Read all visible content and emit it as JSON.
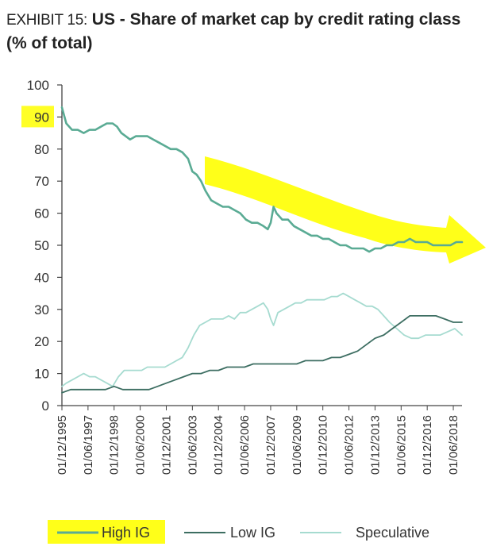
{
  "header": {
    "exhibit_label": "EXHIBIT 15:",
    "title": "US - Share of market cap by credit rating class (% of total)"
  },
  "chart_data": {
    "type": "line",
    "title": "US - Share of market cap by credit rating class (% of total)",
    "xlabel": "",
    "ylabel": "",
    "ylim": [
      0,
      100
    ],
    "yticks": [
      0,
      10,
      20,
      30,
      40,
      50,
      60,
      70,
      80,
      90,
      100
    ],
    "highlighted_ytick": 90,
    "x_start": "1995-12",
    "x_end": "2018-12",
    "xtick_labels": [
      "01/12/1995",
      "01/06/1997",
      "01/12/1998",
      "01/06/2000",
      "01/12/2001",
      "01/06/2003",
      "01/12/2004",
      "01/06/2006",
      "01/12/2007",
      "01/06/2009",
      "01/12/2010",
      "01/06/2012",
      "01/12/2013",
      "01/06/2015",
      "01/12/2016",
      "01/06/2018"
    ],
    "grid": false,
    "legend_position": "bottom",
    "series": [
      {
        "name": "High IG",
        "color": "#5aab94",
        "highlighted": true,
        "points": [
          [
            "1995-12",
            93
          ],
          [
            "1996-03",
            88
          ],
          [
            "1996-07",
            86
          ],
          [
            "1996-11",
            86
          ],
          [
            "1997-03",
            85
          ],
          [
            "1997-07",
            86
          ],
          [
            "1997-11",
            86
          ],
          [
            "1998-03",
            87
          ],
          [
            "1998-07",
            88
          ],
          [
            "1998-11",
            88
          ],
          [
            "1999-02",
            87
          ],
          [
            "1999-05",
            85
          ],
          [
            "1999-08",
            84
          ],
          [
            "1999-11",
            83
          ],
          [
            "2000-03",
            84
          ],
          [
            "2000-07",
            84
          ],
          [
            "2000-11",
            84
          ],
          [
            "2001-03",
            83
          ],
          [
            "2001-07",
            82
          ],
          [
            "2001-11",
            81
          ],
          [
            "2002-03",
            80
          ],
          [
            "2002-07",
            80
          ],
          [
            "2002-11",
            79
          ],
          [
            "2003-03",
            77
          ],
          [
            "2003-06",
            73
          ],
          [
            "2003-09",
            72
          ],
          [
            "2003-12",
            70
          ],
          [
            "2004-03",
            67
          ],
          [
            "2004-07",
            64
          ],
          [
            "2004-11",
            63
          ],
          [
            "2005-03",
            62
          ],
          [
            "2005-07",
            62
          ],
          [
            "2005-11",
            61
          ],
          [
            "2006-03",
            60
          ],
          [
            "2006-07",
            58
          ],
          [
            "2006-11",
            57
          ],
          [
            "2007-03",
            57
          ],
          [
            "2007-07",
            56
          ],
          [
            "2007-10",
            55
          ],
          [
            "2007-12",
            57
          ],
          [
            "2008-02",
            62
          ],
          [
            "2008-04",
            60
          ],
          [
            "2008-08",
            58
          ],
          [
            "2008-12",
            58
          ],
          [
            "2009-04",
            56
          ],
          [
            "2009-08",
            55
          ],
          [
            "2009-12",
            54
          ],
          [
            "2010-04",
            53
          ],
          [
            "2010-08",
            53
          ],
          [
            "2010-12",
            52
          ],
          [
            "2011-04",
            52
          ],
          [
            "2011-08",
            51
          ],
          [
            "2011-12",
            50
          ],
          [
            "2012-04",
            50
          ],
          [
            "2012-08",
            49
          ],
          [
            "2012-12",
            49
          ],
          [
            "2013-04",
            49
          ],
          [
            "2013-08",
            48
          ],
          [
            "2013-12",
            49
          ],
          [
            "2014-04",
            49
          ],
          [
            "2014-08",
            50
          ],
          [
            "2014-12",
            50
          ],
          [
            "2015-04",
            51
          ],
          [
            "2015-08",
            51
          ],
          [
            "2015-12",
            52
          ],
          [
            "2016-04",
            51
          ],
          [
            "2016-08",
            51
          ],
          [
            "2016-12",
            51
          ],
          [
            "2017-04",
            50
          ],
          [
            "2017-08",
            50
          ],
          [
            "2017-12",
            50
          ],
          [
            "2018-04",
            50
          ],
          [
            "2018-08",
            51
          ],
          [
            "2018-12",
            51
          ]
        ]
      },
      {
        "name": "Low IG",
        "color": "#3d6e62",
        "highlighted": false,
        "points": [
          [
            "1995-12",
            4
          ],
          [
            "1996-06",
            5
          ],
          [
            "1996-12",
            5
          ],
          [
            "1997-06",
            5
          ],
          [
            "1997-12",
            5
          ],
          [
            "1998-06",
            5
          ],
          [
            "1998-12",
            6
          ],
          [
            "1999-06",
            5
          ],
          [
            "1999-12",
            5
          ],
          [
            "2000-06",
            5
          ],
          [
            "2000-12",
            5
          ],
          [
            "2001-06",
            6
          ],
          [
            "2001-12",
            7
          ],
          [
            "2002-06",
            8
          ],
          [
            "2002-12",
            9
          ],
          [
            "2003-06",
            10
          ],
          [
            "2003-12",
            10
          ],
          [
            "2004-06",
            11
          ],
          [
            "2004-12",
            11
          ],
          [
            "2005-06",
            12
          ],
          [
            "2005-12",
            12
          ],
          [
            "2006-06",
            12
          ],
          [
            "2006-12",
            13
          ],
          [
            "2007-06",
            13
          ],
          [
            "2007-12",
            13
          ],
          [
            "2008-06",
            13
          ],
          [
            "2008-12",
            13
          ],
          [
            "2009-06",
            13
          ],
          [
            "2009-12",
            14
          ],
          [
            "2010-06",
            14
          ],
          [
            "2010-12",
            14
          ],
          [
            "2011-06",
            15
          ],
          [
            "2011-12",
            15
          ],
          [
            "2012-06",
            16
          ],
          [
            "2012-12",
            17
          ],
          [
            "2013-06",
            19
          ],
          [
            "2013-12",
            21
          ],
          [
            "2014-06",
            22
          ],
          [
            "2014-12",
            24
          ],
          [
            "2015-06",
            26
          ],
          [
            "2015-12",
            28
          ],
          [
            "2016-06",
            28
          ],
          [
            "2016-12",
            28
          ],
          [
            "2017-06",
            28
          ],
          [
            "2017-12",
            27
          ],
          [
            "2018-06",
            26
          ],
          [
            "2018-12",
            26
          ]
        ]
      },
      {
        "name": "Speculative",
        "color": "#a6dbd0",
        "highlighted": false,
        "points": [
          [
            "1995-12",
            6
          ],
          [
            "1996-03",
            7
          ],
          [
            "1996-07",
            8
          ],
          [
            "1996-11",
            9
          ],
          [
            "1997-03",
            10
          ],
          [
            "1997-07",
            9
          ],
          [
            "1997-11",
            9
          ],
          [
            "1998-03",
            8
          ],
          [
            "1998-07",
            7
          ],
          [
            "1998-11",
            6
          ],
          [
            "1999-03",
            9
          ],
          [
            "1999-07",
            11
          ],
          [
            "1999-11",
            11
          ],
          [
            "2000-03",
            11
          ],
          [
            "2000-07",
            11
          ],
          [
            "2000-11",
            12
          ],
          [
            "2001-03",
            12
          ],
          [
            "2001-07",
            12
          ],
          [
            "2001-11",
            12
          ],
          [
            "2002-03",
            13
          ],
          [
            "2002-07",
            14
          ],
          [
            "2002-11",
            15
          ],
          [
            "2003-03",
            18
          ],
          [
            "2003-07",
            22
          ],
          [
            "2003-11",
            25
          ],
          [
            "2004-03",
            26
          ],
          [
            "2004-07",
            27
          ],
          [
            "2004-11",
            27
          ],
          [
            "2005-03",
            27
          ],
          [
            "2005-07",
            28
          ],
          [
            "2005-11",
            27
          ],
          [
            "2006-03",
            29
          ],
          [
            "2006-07",
            29
          ],
          [
            "2006-11",
            30
          ],
          [
            "2007-03",
            31
          ],
          [
            "2007-07",
            32
          ],
          [
            "2007-10",
            30
          ],
          [
            "2007-12",
            27
          ],
          [
            "2008-02",
            25
          ],
          [
            "2008-05",
            29
          ],
          [
            "2008-09",
            30
          ],
          [
            "2009-01",
            31
          ],
          [
            "2009-05",
            32
          ],
          [
            "2009-09",
            32
          ],
          [
            "2010-01",
            33
          ],
          [
            "2010-05",
            33
          ],
          [
            "2010-09",
            33
          ],
          [
            "2011-01",
            33
          ],
          [
            "2011-06",
            34
          ],
          [
            "2011-10",
            34
          ],
          [
            "2012-02",
            35
          ],
          [
            "2012-06",
            34
          ],
          [
            "2012-10",
            33
          ],
          [
            "2013-02",
            32
          ],
          [
            "2013-06",
            31
          ],
          [
            "2013-10",
            31
          ],
          [
            "2014-02",
            30
          ],
          [
            "2014-06",
            28
          ],
          [
            "2014-10",
            26
          ],
          [
            "2015-03",
            24
          ],
          [
            "2015-08",
            22
          ],
          [
            "2016-01",
            21
          ],
          [
            "2016-06",
            21
          ],
          [
            "2016-11",
            22
          ],
          [
            "2017-04",
            22
          ],
          [
            "2017-09",
            22
          ],
          [
            "2018-02",
            23
          ],
          [
            "2018-07",
            24
          ],
          [
            "2018-12",
            22
          ]
        ]
      }
    ]
  }
}
